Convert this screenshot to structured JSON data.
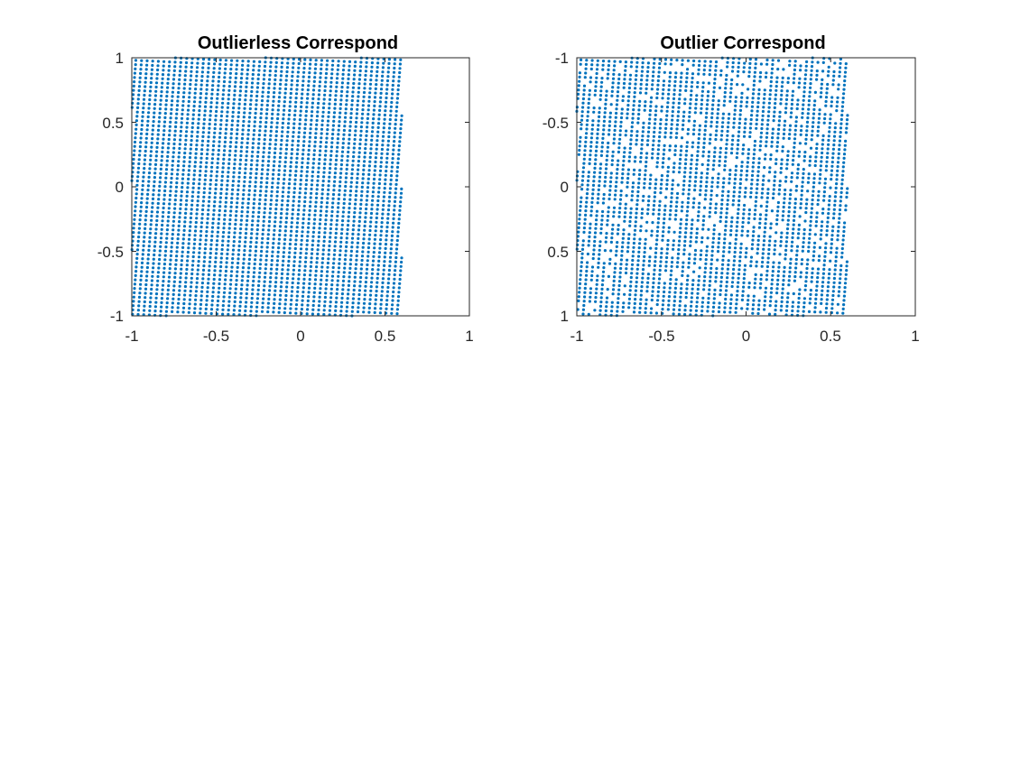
{
  "chart_data": [
    {
      "type": "scatter",
      "title": "Outlierless Correspond",
      "xlabel": "",
      "ylabel": "",
      "xlim": [
        -1,
        1
      ],
      "ylim": [
        -1,
        1
      ],
      "y_reversed": false,
      "x_ticks": [
        "-1",
        "-0.5",
        "0",
        "0.5",
        "1"
      ],
      "x_tick_values": [
        -1,
        -0.5,
        0,
        0.5,
        1
      ],
      "y_ticks": [
        "1",
        "0.5",
        "0",
        "-0.5",
        "-1"
      ],
      "y_tick_values": [
        1,
        0.5,
        0,
        -0.5,
        -1
      ],
      "grid": false,
      "marker_color": "#0072BD",
      "points_description": "approximately 1900 points on a regular grid rotated by about 3.5 degrees, filling x from -1 to 0.6 and y from -1 to 1",
      "grid_pattern": {
        "x_min": -1.0,
        "x_max": 0.6,
        "y_min": -1.0,
        "y_max": 1.0,
        "step": 0.0333,
        "rotation_deg": -3.5,
        "drop_fraction": 0.0
      }
    },
    {
      "type": "scatter",
      "title": "Outlier Correspond",
      "xlabel": "",
      "ylabel": "",
      "xlim": [
        -1,
        1
      ],
      "ylim": [
        -1,
        1
      ],
      "y_reversed": true,
      "x_ticks": [
        "-1",
        "-0.5",
        "0",
        "0.5",
        "1"
      ],
      "x_tick_values": [
        -1,
        -0.5,
        0,
        0.5,
        1
      ],
      "y_ticks": [
        "-1",
        "-0.5",
        "0",
        "0.5",
        "1"
      ],
      "y_tick_values": [
        -1,
        -0.5,
        0,
        0.5,
        1
      ],
      "grid": false,
      "marker_color": "#0072BD",
      "points_description": "the same rotated grid with roughly 15% of points displaced (outliers), leaving visible gaps, x from -1 to 0.6 and y from -1 to 1",
      "grid_pattern": {
        "x_min": -1.0,
        "x_max": 0.6,
        "y_min": -1.0,
        "y_max": 1.0,
        "step": 0.0333,
        "rotation_deg": 3.5,
        "drop_fraction": 0.15
      }
    }
  ]
}
